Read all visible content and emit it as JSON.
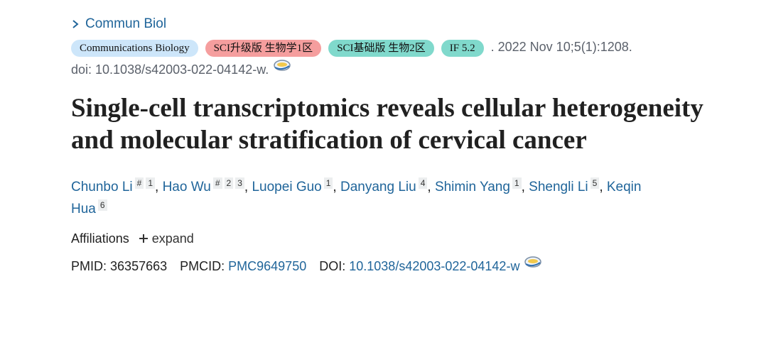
{
  "journal_link": "Commun Biol",
  "badges": [
    "Communications Biology",
    "SCI升级版 生物学1区",
    "SCI基础版 生物2区",
    "IF 5.2"
  ],
  "citation": ". 2022 Nov 10;5(1):1208.",
  "doi_line": "doi: 10.1038/s42003-022-04142-w.",
  "title": "Single-cell transcriptomics reveals cellular heterogeneity and molecular stratification of cervical cancer",
  "authors": [
    {
      "name": "Chunbo Li",
      "marks": [
        "#",
        "1"
      ]
    },
    {
      "name": "Hao Wu",
      "marks": [
        "#",
        "2",
        "3"
      ]
    },
    {
      "name": "Luopei Guo",
      "marks": [
        "1"
      ]
    },
    {
      "name": "Danyang Liu",
      "marks": [
        "4"
      ]
    },
    {
      "name": "Shimin Yang",
      "marks": [
        "1"
      ]
    },
    {
      "name": "Shengli Li",
      "marks": [
        "5"
      ]
    },
    {
      "name": "Keqin Hua",
      "marks": [
        "6"
      ]
    }
  ],
  "author_separator": ",",
  "affiliations": {
    "label": "Affiliations",
    "toggle": "expand"
  },
  "identifiers": [
    {
      "label": "PMID:",
      "value": "36357663"
    },
    {
      "label": "PMCID:",
      "value": "PMC9649750"
    },
    {
      "label": "DOI:",
      "value": "10.1038/s42003-022-04142-w"
    }
  ]
}
